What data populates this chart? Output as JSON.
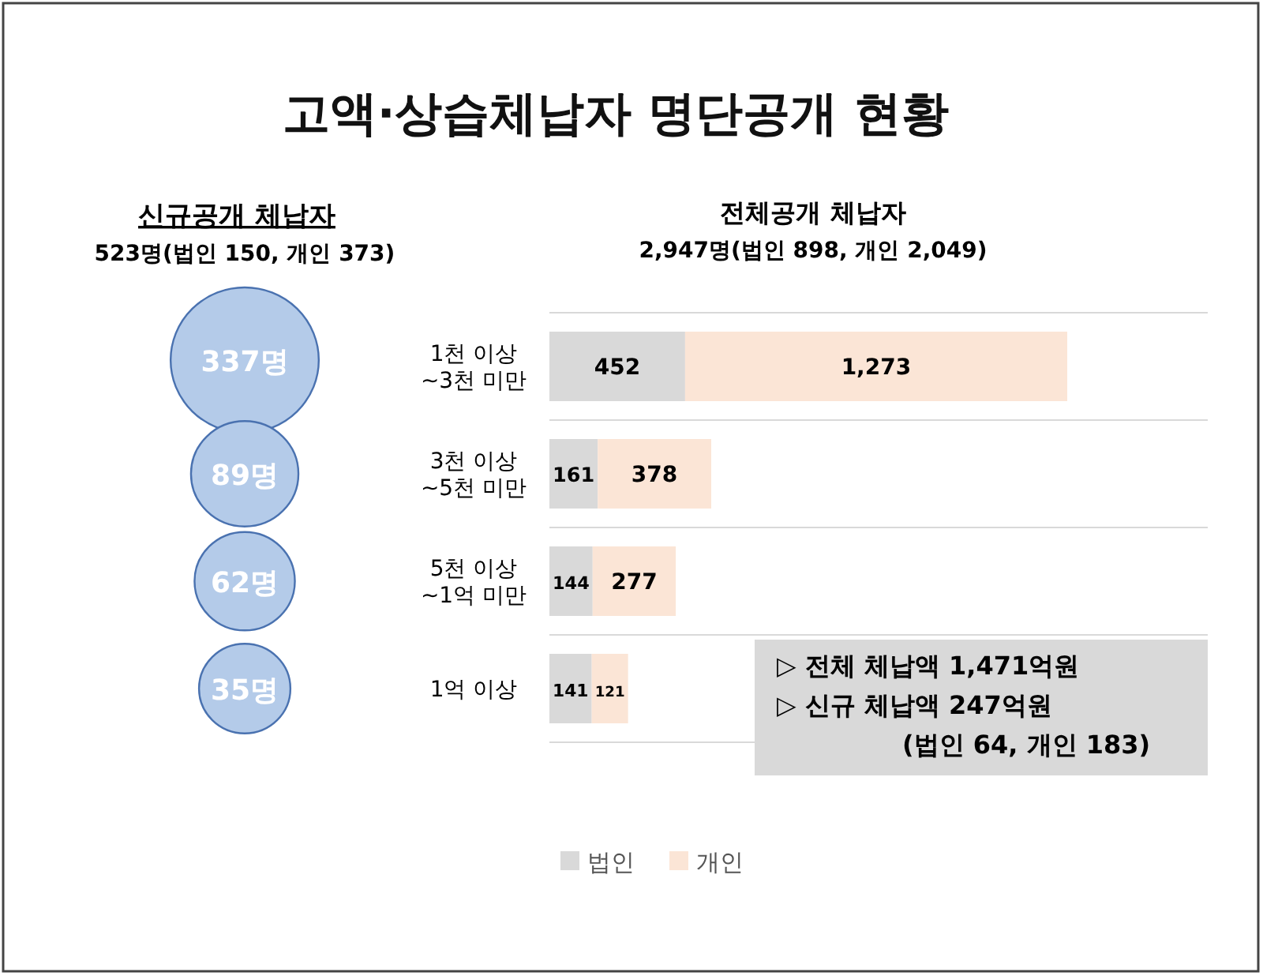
{
  "chart_data": [
    {
      "type": "other",
      "title": "고액·상습체납자 명단공개 현황"
    },
    {
      "type": "other",
      "title": "신규공개 체납자",
      "subtitle": "523명(법인 150, 개인 373)",
      "categories": [
        null,
        null,
        null,
        null
      ],
      "values": [
        337,
        89,
        62,
        35
      ],
      "value_labels": [
        "337명",
        "89명",
        "62명",
        "35명"
      ],
      "color": "#b4cbe9"
    },
    {
      "type": "bar",
      "orientation": "horizontal",
      "stacked": true,
      "title": "전체공개 체납자",
      "subtitle": "2,947명(법인 898, 개인 2,049)",
      "categories": [
        "1천 이상\n~3천 미만",
        "3천 이상\n~5천 미만",
        "5천 이상\n~1억 미만",
        "1억 이상"
      ],
      "series": [
        {
          "name": "법인",
          "color": "#d9d9d9",
          "values": [
            452,
            161,
            144,
            141
          ],
          "value_labels": [
            "452",
            "161",
            "144",
            "141"
          ]
        },
        {
          "name": "개인",
          "color": "#fbe5d6",
          "values": [
            1273,
            378,
            277,
            121
          ],
          "value_labels": [
            "1,273",
            "378",
            "277",
            "121"
          ]
        }
      ],
      "grid": "y",
      "legend": "bottom",
      "annotations": [
        "▷ 전체 체납액 1,471억원",
        "▷ 신규 체납액   247억원",
        "(법인 64, 개인 183)"
      ]
    }
  ]
}
